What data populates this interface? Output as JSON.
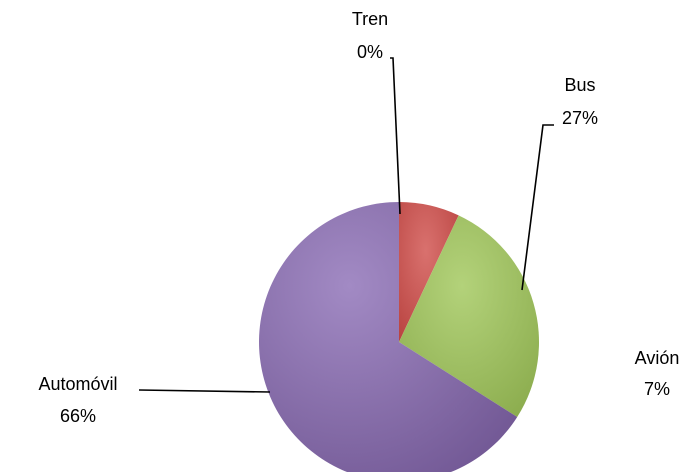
{
  "chart_data": {
    "type": "pie",
    "title": "",
    "slices": [
      {
        "category": "Tren",
        "percent_label": "0%",
        "value": 0,
        "color": "#c0504d"
      },
      {
        "category": "Bus",
        "percent_label": "27%",
        "value": 27,
        "color": "#9bbb59"
      },
      {
        "category": "Avión",
        "percent_label": "7%",
        "value": 7,
        "color": "#c0504d"
      },
      {
        "category": "Automóvil",
        "percent_label": "66%",
        "value": 66,
        "color": "#8064a2"
      }
    ],
    "drawn_order": [
      "Avión",
      "Bus",
      "Automóvil"
    ],
    "legend": "none"
  }
}
